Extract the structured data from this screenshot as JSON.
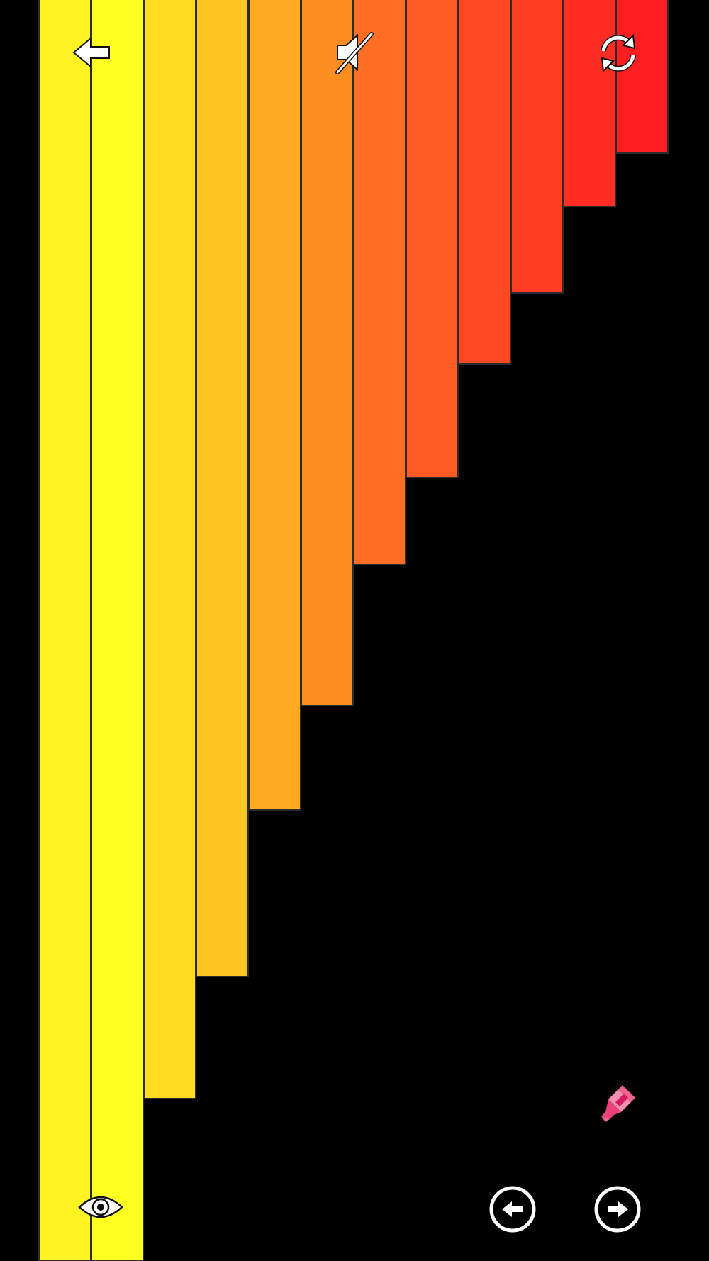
{
  "game": {
    "bars": [
      {
        "color": "#FFF323",
        "level": 1.0
      },
      {
        "color": "#FFFF22",
        "level": 1.0
      },
      {
        "color": "#FFDC22",
        "level": 0.872
      },
      {
        "color": "#FFC522",
        "level": 0.775
      },
      {
        "color": "#FFAA22",
        "level": 0.643
      },
      {
        "color": "#FF8E22",
        "level": 0.56
      },
      {
        "color": "#FF6E22",
        "level": 0.448
      },
      {
        "color": "#FF5A22",
        "level": 0.379
      },
      {
        "color": "#FF4822",
        "level": 0.289
      },
      {
        "color": "#FF3D22",
        "level": 0.233
      },
      {
        "color": "#FF2D22",
        "level": 0.164
      },
      {
        "color": "#FF1F22",
        "level": 0.122
      }
    ]
  },
  "toolbar": {
    "back_icon": "arrow-left-icon",
    "sound_icon": "speaker-muted-icon",
    "restart_icon": "refresh-icon"
  },
  "controls": {
    "hint_icon": "eye-icon",
    "brush_icon": "paint-brush-icon",
    "prev_icon": "circle-arrow-left-icon",
    "next_icon": "circle-arrow-right-icon",
    "brush_color": "#F06292"
  }
}
